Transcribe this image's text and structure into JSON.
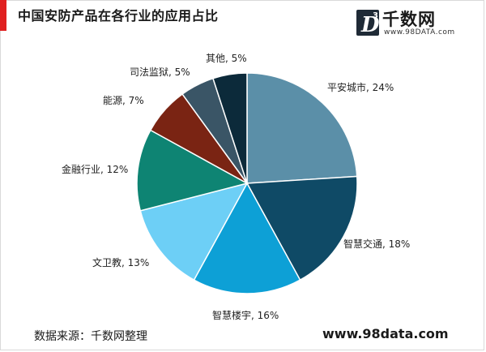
{
  "title": "中国安防产品在各行业的应用占比",
  "logo": {
    "glyph": "D",
    "superscript": "3",
    "brand": "千数网",
    "url": "www.98DATA.com",
    "colors": {
      "box": "#1f2a36",
      "accent": "#ffffff"
    }
  },
  "footer": {
    "source": "数据来源：千数网整理",
    "site": "www.98data.com"
  },
  "chart_data": {
    "type": "pie",
    "title": "中国安防产品在各行业的应用占比",
    "start_angle_deg": 0,
    "direction": "clockwise",
    "slices": [
      {
        "name": "平安城市",
        "value": 24,
        "label": "平安城市, 24%",
        "color": "#5b8fa8"
      },
      {
        "name": "智慧交通",
        "value": 18,
        "label": "智慧交通, 18%",
        "color": "#0f4a66"
      },
      {
        "name": "智慧楼宇",
        "value": 16,
        "label": "智慧楼宇, 16%",
        "color": "#0da0d6"
      },
      {
        "name": "文卫教",
        "value": 13,
        "label": "文卫教, 13%",
        "color": "#6dcff6"
      },
      {
        "name": "金融行业",
        "value": 12,
        "label": "金融行业, 12%",
        "color": "#0e8473"
      },
      {
        "name": "能源",
        "value": 7,
        "label": "能源, 7%",
        "color": "#7a2413"
      },
      {
        "name": "司法监狱",
        "value": 5,
        "label": "司法监狱, 5%",
        "color": "#3a5566"
      },
      {
        "name": "其他",
        "value": 5,
        "label": "其他, 5%",
        "color": "#0c2a3a"
      }
    ]
  }
}
